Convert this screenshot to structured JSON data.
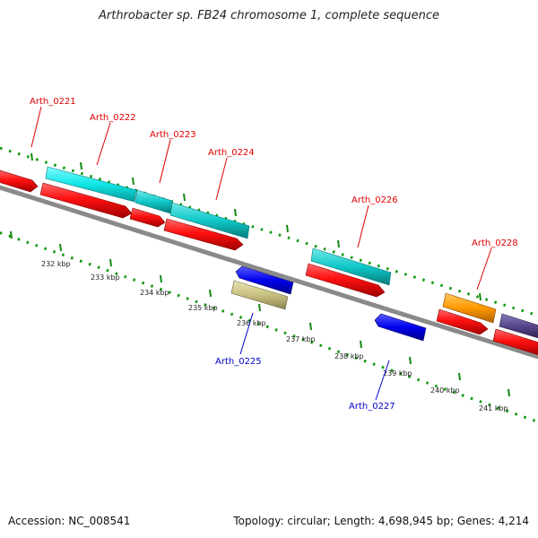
{
  "title": "Arthrobacter sp. FB24 chromosome 1, complete sequence",
  "footer": {
    "accession": "Accession: NC_008541",
    "info": "Topology: circular; Length: 4,698,945 bp; Genes: 4,214"
  },
  "scale": {
    "ticks": [
      {
        "label": "232 kbp"
      },
      {
        "label": "233 kbp"
      },
      {
        "label": "234 kbp"
      },
      {
        "label": "235 kbp"
      },
      {
        "label": "236 kbp"
      },
      {
        "label": "237 kbp"
      },
      {
        "label": "238 kbp"
      },
      {
        "label": "239 kbp"
      },
      {
        "label": "240 kbp"
      },
      {
        "label": "241 kbp"
      }
    ]
  },
  "genes": [
    {
      "id": "Arth_0221",
      "label": "Arth_0221"
    },
    {
      "id": "Arth_0222",
      "label": "Arth_0222"
    },
    {
      "id": "Arth_0223",
      "label": "Arth_0223"
    },
    {
      "id": "Arth_0224",
      "label": "Arth_0224"
    },
    {
      "id": "Arth_0225",
      "label": "Arth_0225"
    },
    {
      "id": "Arth_0226",
      "label": "Arth_0226"
    },
    {
      "id": "Arth_0227",
      "label": "Arth_0227"
    },
    {
      "id": "Arth_0228",
      "label": "Arth_0228"
    }
  ],
  "colors": {
    "forward_label": "#e00000",
    "reverse_label": "#0000cc",
    "backbone": "#8a8a8a",
    "tick": "#00aa00",
    "cds_red": "#ff1010",
    "cyan": "#10e6e6",
    "teal": "#10c8c8",
    "blue": "#0000ee",
    "khaki": "#c8c080",
    "orange": "#ff9900",
    "purple": "#55448a"
  }
}
